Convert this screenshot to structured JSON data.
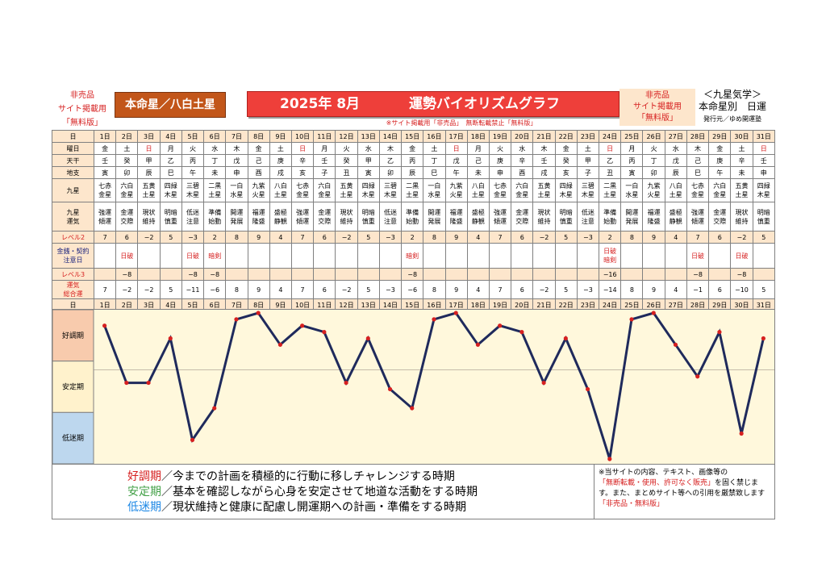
{
  "header": {
    "left_lines": [
      "非売品",
      "サイト掲載用",
      "「無料版」"
    ],
    "honmei": "本命星／八白土星",
    "title_year_month": "2025年 8月",
    "title_main": "運勢バイオリズムグラフ",
    "right_lines": [
      "非売品",
      "サイト掲載用",
      "「無料版」"
    ],
    "far_line1": "＜九星気学＞",
    "far_line2": "本命星別　日運",
    "far_line3": "発行元／ゆめ開運塾",
    "notice": "※サイト掲載用「非売品」　無断転載禁止「無料版」"
  },
  "labels": {
    "day": "日",
    "dow": "曜日",
    "kan": "天干",
    "shi": "地支",
    "kyusei": "九星",
    "unki": [
      "九星",
      "運気"
    ],
    "lv2": "レベル2",
    "kin": [
      "金銭・契約",
      "注意日"
    ],
    "lv3": "レベル3",
    "total": [
      "運気",
      "総合運"
    ]
  },
  "days": [
    "1日",
    "2日",
    "3日",
    "4日",
    "5日",
    "6日",
    "7日",
    "8日",
    "9日",
    "10日",
    "11日",
    "12日",
    "13日",
    "14日",
    "15日",
    "16日",
    "17日",
    "18日",
    "19日",
    "20日",
    "21日",
    "22日",
    "23日",
    "24日",
    "25日",
    "26日",
    "27日",
    "28日",
    "29日",
    "30日",
    "31日"
  ],
  "dow": [
    "金",
    "土",
    "日",
    "月",
    "火",
    "水",
    "木",
    "金",
    "土",
    "日",
    "月",
    "火",
    "水",
    "木",
    "金",
    "土",
    "日",
    "月",
    "火",
    "水",
    "木",
    "金",
    "土",
    "日",
    "月",
    "火",
    "水",
    "木",
    "金",
    "土",
    "日"
  ],
  "kan": [
    "壬",
    "癸",
    "甲",
    "乙",
    "丙",
    "丁",
    "戊",
    "己",
    "庚",
    "辛",
    "壬",
    "癸",
    "甲",
    "乙",
    "丙",
    "丁",
    "戊",
    "己",
    "庚",
    "辛",
    "壬",
    "癸",
    "甲",
    "乙",
    "丙",
    "丁",
    "戊",
    "己",
    "庚",
    "辛",
    "壬"
  ],
  "shi": [
    "寅",
    "卯",
    "辰",
    "巳",
    "午",
    "未",
    "申",
    "酉",
    "戌",
    "亥",
    "子",
    "丑",
    "寅",
    "卯",
    "辰",
    "巳",
    "午",
    "未",
    "申",
    "酉",
    "戌",
    "亥",
    "子",
    "丑",
    "寅",
    "卯",
    "辰",
    "巳",
    "午",
    "未",
    "申"
  ],
  "kyusei": [
    [
      "七赤",
      "金星"
    ],
    [
      "六白",
      "金星"
    ],
    [
      "五黄",
      "土星"
    ],
    [
      "四緑",
      "木星"
    ],
    [
      "三碧",
      "木星"
    ],
    [
      "二黒",
      "土星"
    ],
    [
      "一白",
      "水星"
    ],
    [
      "九紫",
      "火星"
    ],
    [
      "八白",
      "土星"
    ],
    [
      "七赤",
      "金星"
    ],
    [
      "六白",
      "金星"
    ],
    [
      "五黄",
      "土星"
    ],
    [
      "四緑",
      "木星"
    ],
    [
      "三碧",
      "木星"
    ],
    [
      "二黒",
      "土星"
    ],
    [
      "一白",
      "水星"
    ],
    [
      "九紫",
      "火星"
    ],
    [
      "八白",
      "土星"
    ],
    [
      "七赤",
      "金星"
    ],
    [
      "六白",
      "金星"
    ],
    [
      "五黄",
      "土星"
    ],
    [
      "四緑",
      "木星"
    ],
    [
      "三碧",
      "木星"
    ],
    [
      "二黒",
      "土星"
    ],
    [
      "一白",
      "水星"
    ],
    [
      "九紫",
      "火星"
    ],
    [
      "八白",
      "土星"
    ],
    [
      "七赤",
      "金星"
    ],
    [
      "六白",
      "金星"
    ],
    [
      "五黄",
      "土星"
    ],
    [
      "四緑",
      "木星"
    ]
  ],
  "unki": [
    [
      "強運",
      "傾運"
    ],
    [
      "金運",
      "交際"
    ],
    [
      "現状",
      "維持"
    ],
    [
      "明暗",
      "慎重"
    ],
    [
      "低迷",
      "注意"
    ],
    [
      "準備",
      "始動"
    ],
    [
      "開運",
      "発展"
    ],
    [
      "福運",
      "隆盛"
    ],
    [
      "盛極",
      "静観"
    ],
    [
      "強運",
      "傾運"
    ],
    [
      "金運",
      "交際"
    ],
    [
      "現状",
      "維持"
    ],
    [
      "明暗",
      "慎重"
    ],
    [
      "低迷",
      "注意"
    ],
    [
      "準備",
      "始動"
    ],
    [
      "開運",
      "発展"
    ],
    [
      "福運",
      "隆盛"
    ],
    [
      "盛極",
      "静観"
    ],
    [
      "強運",
      "傾運"
    ],
    [
      "金運",
      "交際"
    ],
    [
      "現状",
      "維持"
    ],
    [
      "明暗",
      "慎重"
    ],
    [
      "低迷",
      "注意"
    ],
    [
      "準備",
      "始動"
    ],
    [
      "開運",
      "発展"
    ],
    [
      "福運",
      "隆盛"
    ],
    [
      "盛極",
      "静観"
    ],
    [
      "強運",
      "傾運"
    ],
    [
      "金運",
      "交際"
    ],
    [
      "現状",
      "維持"
    ],
    [
      "明暗",
      "慎重"
    ]
  ],
  "lv2": [
    "7",
    "6",
    "−2",
    "5",
    "−3",
    "2",
    "8",
    "9",
    "4",
    "7",
    "6",
    "−2",
    "5",
    "−3",
    "2",
    "8",
    "9",
    "4",
    "7",
    "6",
    "−2",
    "5",
    "−3",
    "2",
    "8",
    "9",
    "4",
    "7",
    "6",
    "−2",
    "5"
  ],
  "kin": [
    [],
    [
      "日破"
    ],
    [],
    [],
    [
      "日破"
    ],
    [
      "暗剣"
    ],
    [],
    [],
    [],
    [],
    [],
    [],
    [],
    [],
    [
      "暗剣"
    ],
    [],
    [],
    [],
    [],
    [],
    [],
    [],
    [],
    [
      "日破",
      "暗剣"
    ],
    [],
    [],
    [],
    [
      "日破"
    ],
    [],
    [
      "日破"
    ],
    []
  ],
  "lv3": [
    "",
    "−8",
    "",
    "",
    "−8",
    "−8",
    "",
    "",
    "",
    "",
    "",
    "",
    "",
    "",
    "−8",
    "",
    "",
    "",
    "",
    "",
    "",
    "",
    "",
    "−16",
    "",
    "",
    "",
    "−8",
    "",
    "−8",
    ""
  ],
  "total": [
    "7",
    "−2",
    "−2",
    "5",
    "−11",
    "−6",
    "8",
    "9",
    "4",
    "7",
    "6",
    "−2",
    "5",
    "−3",
    "−6",
    "8",
    "9",
    "4",
    "7",
    "6",
    "−2",
    "5",
    "−3",
    "−14",
    "8",
    "9",
    "4",
    "−1",
    "6",
    "−10",
    "5"
  ],
  "chart_data": {
    "type": "line",
    "x": [
      "1日",
      "2日",
      "3日",
      "4日",
      "5日",
      "6日",
      "7日",
      "8日",
      "9日",
      "10日",
      "11日",
      "12日",
      "13日",
      "14日",
      "15日",
      "16日",
      "17日",
      "18日",
      "19日",
      "20日",
      "21日",
      "22日",
      "23日",
      "24日",
      "25日",
      "26日",
      "27日",
      "28日",
      "29日",
      "30日",
      "31日"
    ],
    "values": [
      7,
      -2,
      -2,
      5,
      -11,
      -6,
      8,
      9,
      4,
      7,
      6,
      -2,
      5,
      -3,
      -6,
      8,
      9,
      4,
      7,
      6,
      -2,
      5,
      -3,
      -14,
      8,
      9,
      4,
      -1,
      6,
      -10,
      5
    ],
    "ylim": [
      -14,
      9
    ],
    "bands": [
      {
        "label": "好調期",
        "color": "#f8cbad"
      },
      {
        "label": "安定期",
        "color": "#fff2cc"
      },
      {
        "label": "低迷期",
        "color": "#bdd7ee"
      }
    ],
    "line_color": "#1f2a5c",
    "marker_color": "#d62020",
    "bg_color": "#fff8dc",
    "grid": false
  },
  "footer": {
    "lines": [
      {
        "key": "好調期",
        "text": "／今までの計画を積極的に行動に移しチャレンジする時期"
      },
      {
        "key": "安定期",
        "text": "／基本を確認しながら心身を安定させて地道な活動をする時期"
      },
      {
        "key": "低迷期",
        "text": "／現状維持と健康に配慮し開運期への計画・準備をする時期"
      }
    ],
    "note_a": "※当サイトの内容、テキスト、画像等の",
    "note_b": "「無断転載・使用、許可なく販売」",
    "note_c": "を固く禁じます。また、まとめサイト等への引用を厳禁致します",
    "note_d": "「非売品・無料版」"
  }
}
